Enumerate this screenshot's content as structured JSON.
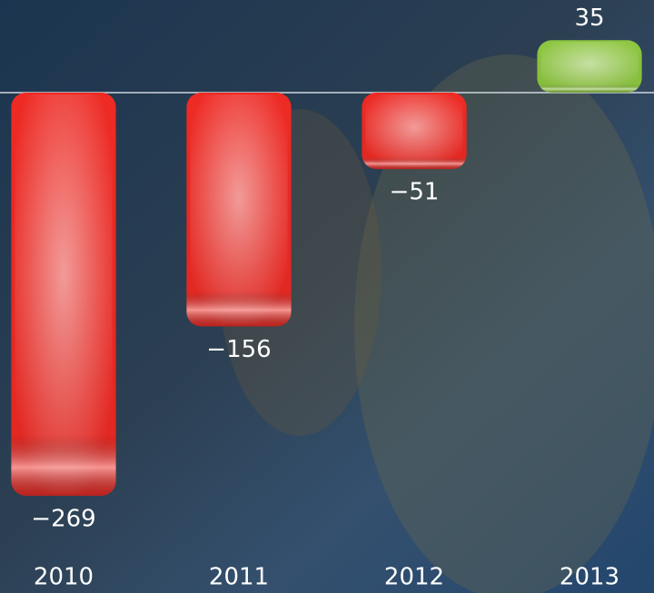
{
  "chart_data": {
    "type": "bar",
    "categories": [
      "2010",
      "2011",
      "2012",
      "2013"
    ],
    "values": [
      -269,
      -156,
      -51,
      35
    ],
    "value_labels": [
      "−269",
      "−156",
      "−51",
      "35"
    ],
    "colors": [
      "#ee2a24",
      "#ee2a24",
      "#ee2a24",
      "#8dc63f"
    ],
    "ylim": [
      -280,
      60
    ]
  }
}
